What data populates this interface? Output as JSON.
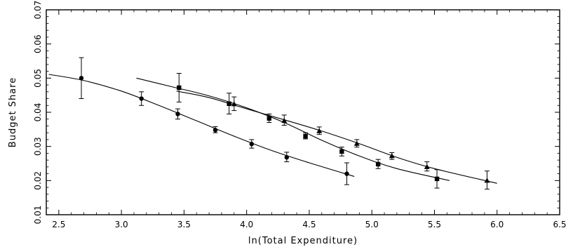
{
  "chart_data": {
    "type": "scatter",
    "xlabel": "ln(Total Expenditure)",
    "ylabel": "Budget Share",
    "xlim": [
      2.4,
      6.5
    ],
    "ylim": [
      0.01,
      0.07
    ],
    "xticks": [
      "2.5",
      "3.0",
      "3.5",
      "4.0",
      "4.5",
      "5.0",
      "5.5",
      "6.0",
      "6.5"
    ],
    "yticks": [
      "0.01",
      "0.02",
      "0.03",
      "0.04",
      "0.05",
      "0.06",
      "0.07"
    ],
    "grid": false,
    "series": [
      {
        "marker": "circle",
        "points": [
          {
            "x": 2.68,
            "y": 0.05,
            "lo": 0.044,
            "hi": 0.056
          },
          {
            "x": 3.16,
            "y": 0.044,
            "lo": 0.042,
            "hi": 0.046
          },
          {
            "x": 3.45,
            "y": 0.0395,
            "lo": 0.038,
            "hi": 0.041
          },
          {
            "x": 3.75,
            "y": 0.0348,
            "lo": 0.034,
            "hi": 0.0358
          },
          {
            "x": 4.04,
            "y": 0.0307,
            "lo": 0.0295,
            "hi": 0.032
          },
          {
            "x": 4.32,
            "y": 0.0268,
            "lo": 0.0255,
            "hi": 0.0283
          },
          {
            "x": 4.8,
            "y": 0.022,
            "lo": 0.0188,
            "hi": 0.0252
          }
        ],
        "fit_curve": [
          [
            2.42,
            0.0511
          ],
          [
            2.7,
            0.0493
          ],
          [
            3.0,
            0.0462
          ],
          [
            3.3,
            0.042
          ],
          [
            3.6,
            0.0375
          ],
          [
            3.9,
            0.033
          ],
          [
            4.2,
            0.0288
          ],
          [
            4.5,
            0.0252
          ],
          [
            4.86,
            0.0212
          ]
        ]
      },
      {
        "marker": "square",
        "points": [
          {
            "x": 3.46,
            "y": 0.0472,
            "lo": 0.043,
            "hi": 0.0514
          },
          {
            "x": 3.86,
            "y": 0.0425,
            "lo": 0.0395,
            "hi": 0.0456
          },
          {
            "x": 4.18,
            "y": 0.0382,
            "lo": 0.037,
            "hi": 0.0395
          },
          {
            "x": 4.47,
            "y": 0.033,
            "lo": 0.0322,
            "hi": 0.034
          },
          {
            "x": 4.76,
            "y": 0.0285,
            "lo": 0.0272,
            "hi": 0.0298
          },
          {
            "x": 5.05,
            "y": 0.0248,
            "lo": 0.0235,
            "hi": 0.0262
          },
          {
            "x": 5.52,
            "y": 0.0205,
            "lo": 0.0178,
            "hi": 0.0232
          }
        ],
        "fit_curve": [
          [
            3.12,
            0.05
          ],
          [
            3.4,
            0.0475
          ],
          [
            3.7,
            0.0448
          ],
          [
            4.0,
            0.0413
          ],
          [
            4.3,
            0.037
          ],
          [
            4.6,
            0.0318
          ],
          [
            4.9,
            0.0272
          ],
          [
            5.2,
            0.0235
          ],
          [
            5.62,
            0.02
          ]
        ]
      },
      {
        "marker": "triangle",
        "points": [
          {
            "x": 3.9,
            "y": 0.0424,
            "lo": 0.0405,
            "hi": 0.0445
          },
          {
            "x": 4.3,
            "y": 0.0375,
            "lo": 0.0362,
            "hi": 0.0392
          },
          {
            "x": 4.58,
            "y": 0.0345,
            "lo": 0.0335,
            "hi": 0.0357
          },
          {
            "x": 4.88,
            "y": 0.0308,
            "lo": 0.0298,
            "hi": 0.032
          },
          {
            "x": 5.16,
            "y": 0.0272,
            "lo": 0.0262,
            "hi": 0.0282
          },
          {
            "x": 5.44,
            "y": 0.024,
            "lo": 0.0228,
            "hi": 0.0255
          },
          {
            "x": 5.92,
            "y": 0.02,
            "lo": 0.0175,
            "hi": 0.0228
          }
        ],
        "fit_curve": [
          [
            3.44,
            0.0462
          ],
          [
            3.7,
            0.0443
          ],
          [
            4.0,
            0.041
          ],
          [
            4.3,
            0.0378
          ],
          [
            4.6,
            0.0345
          ],
          [
            4.9,
            0.0308
          ],
          [
            5.2,
            0.0268
          ],
          [
            5.5,
            0.0235
          ],
          [
            6.0,
            0.0192
          ]
        ]
      }
    ]
  }
}
